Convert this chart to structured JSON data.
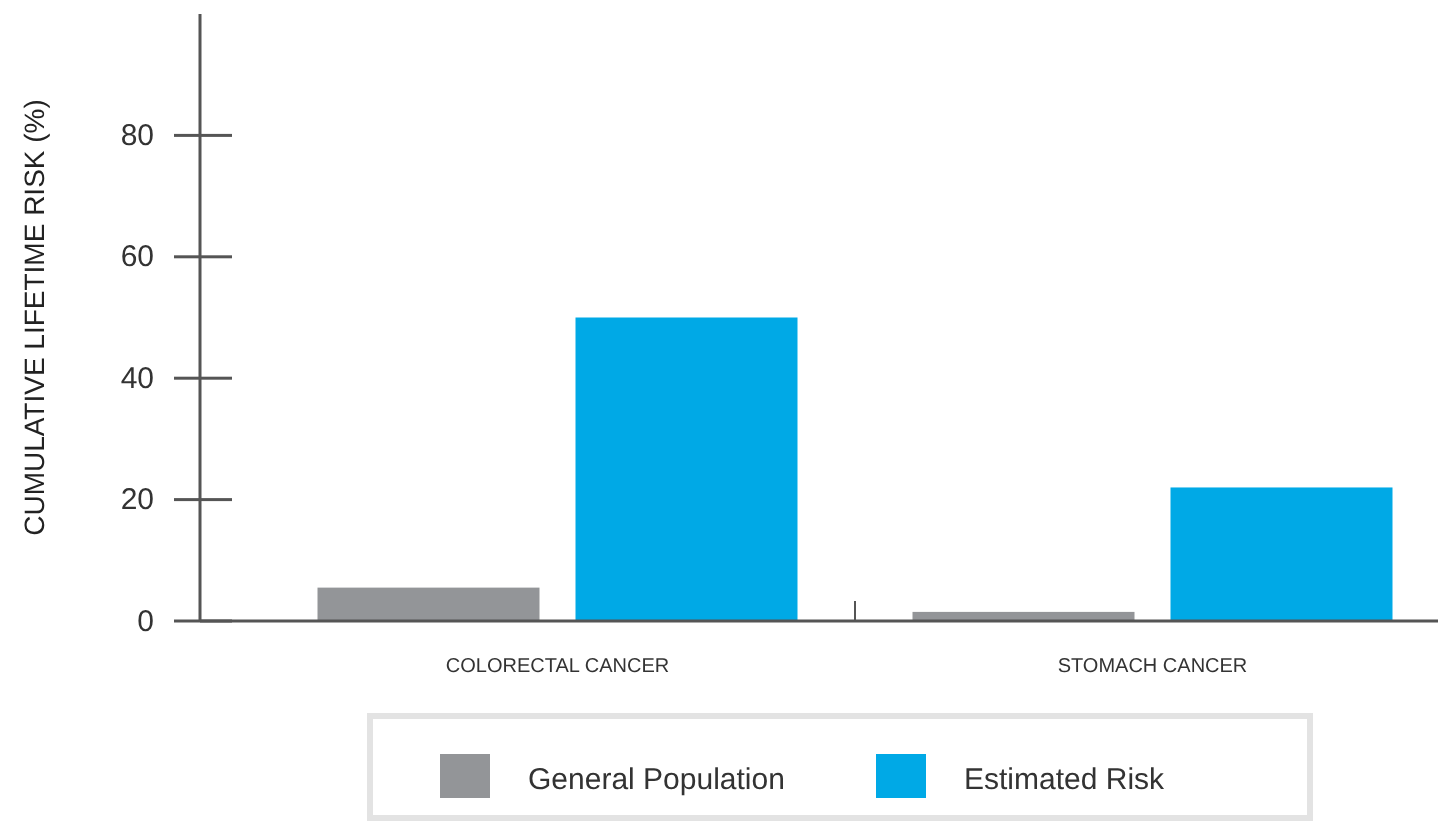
{
  "chart_data": {
    "type": "bar",
    "ylabel": "CUMULATIVE LIFETIME RISK (%)",
    "categories": [
      "COLORECTAL CANCER",
      "STOMACH CANCER"
    ],
    "series": [
      {
        "name": "General Population",
        "color": "#939598",
        "values": [
          5.5,
          1.5
        ]
      },
      {
        "name": "Estimated Risk",
        "color": "#00a9e6",
        "values": [
          50,
          22
        ]
      }
    ],
    "ylim": [
      0,
      100
    ],
    "yticks": [
      0,
      20,
      40,
      60,
      80
    ],
    "grid": false,
    "legend": "bottom"
  }
}
